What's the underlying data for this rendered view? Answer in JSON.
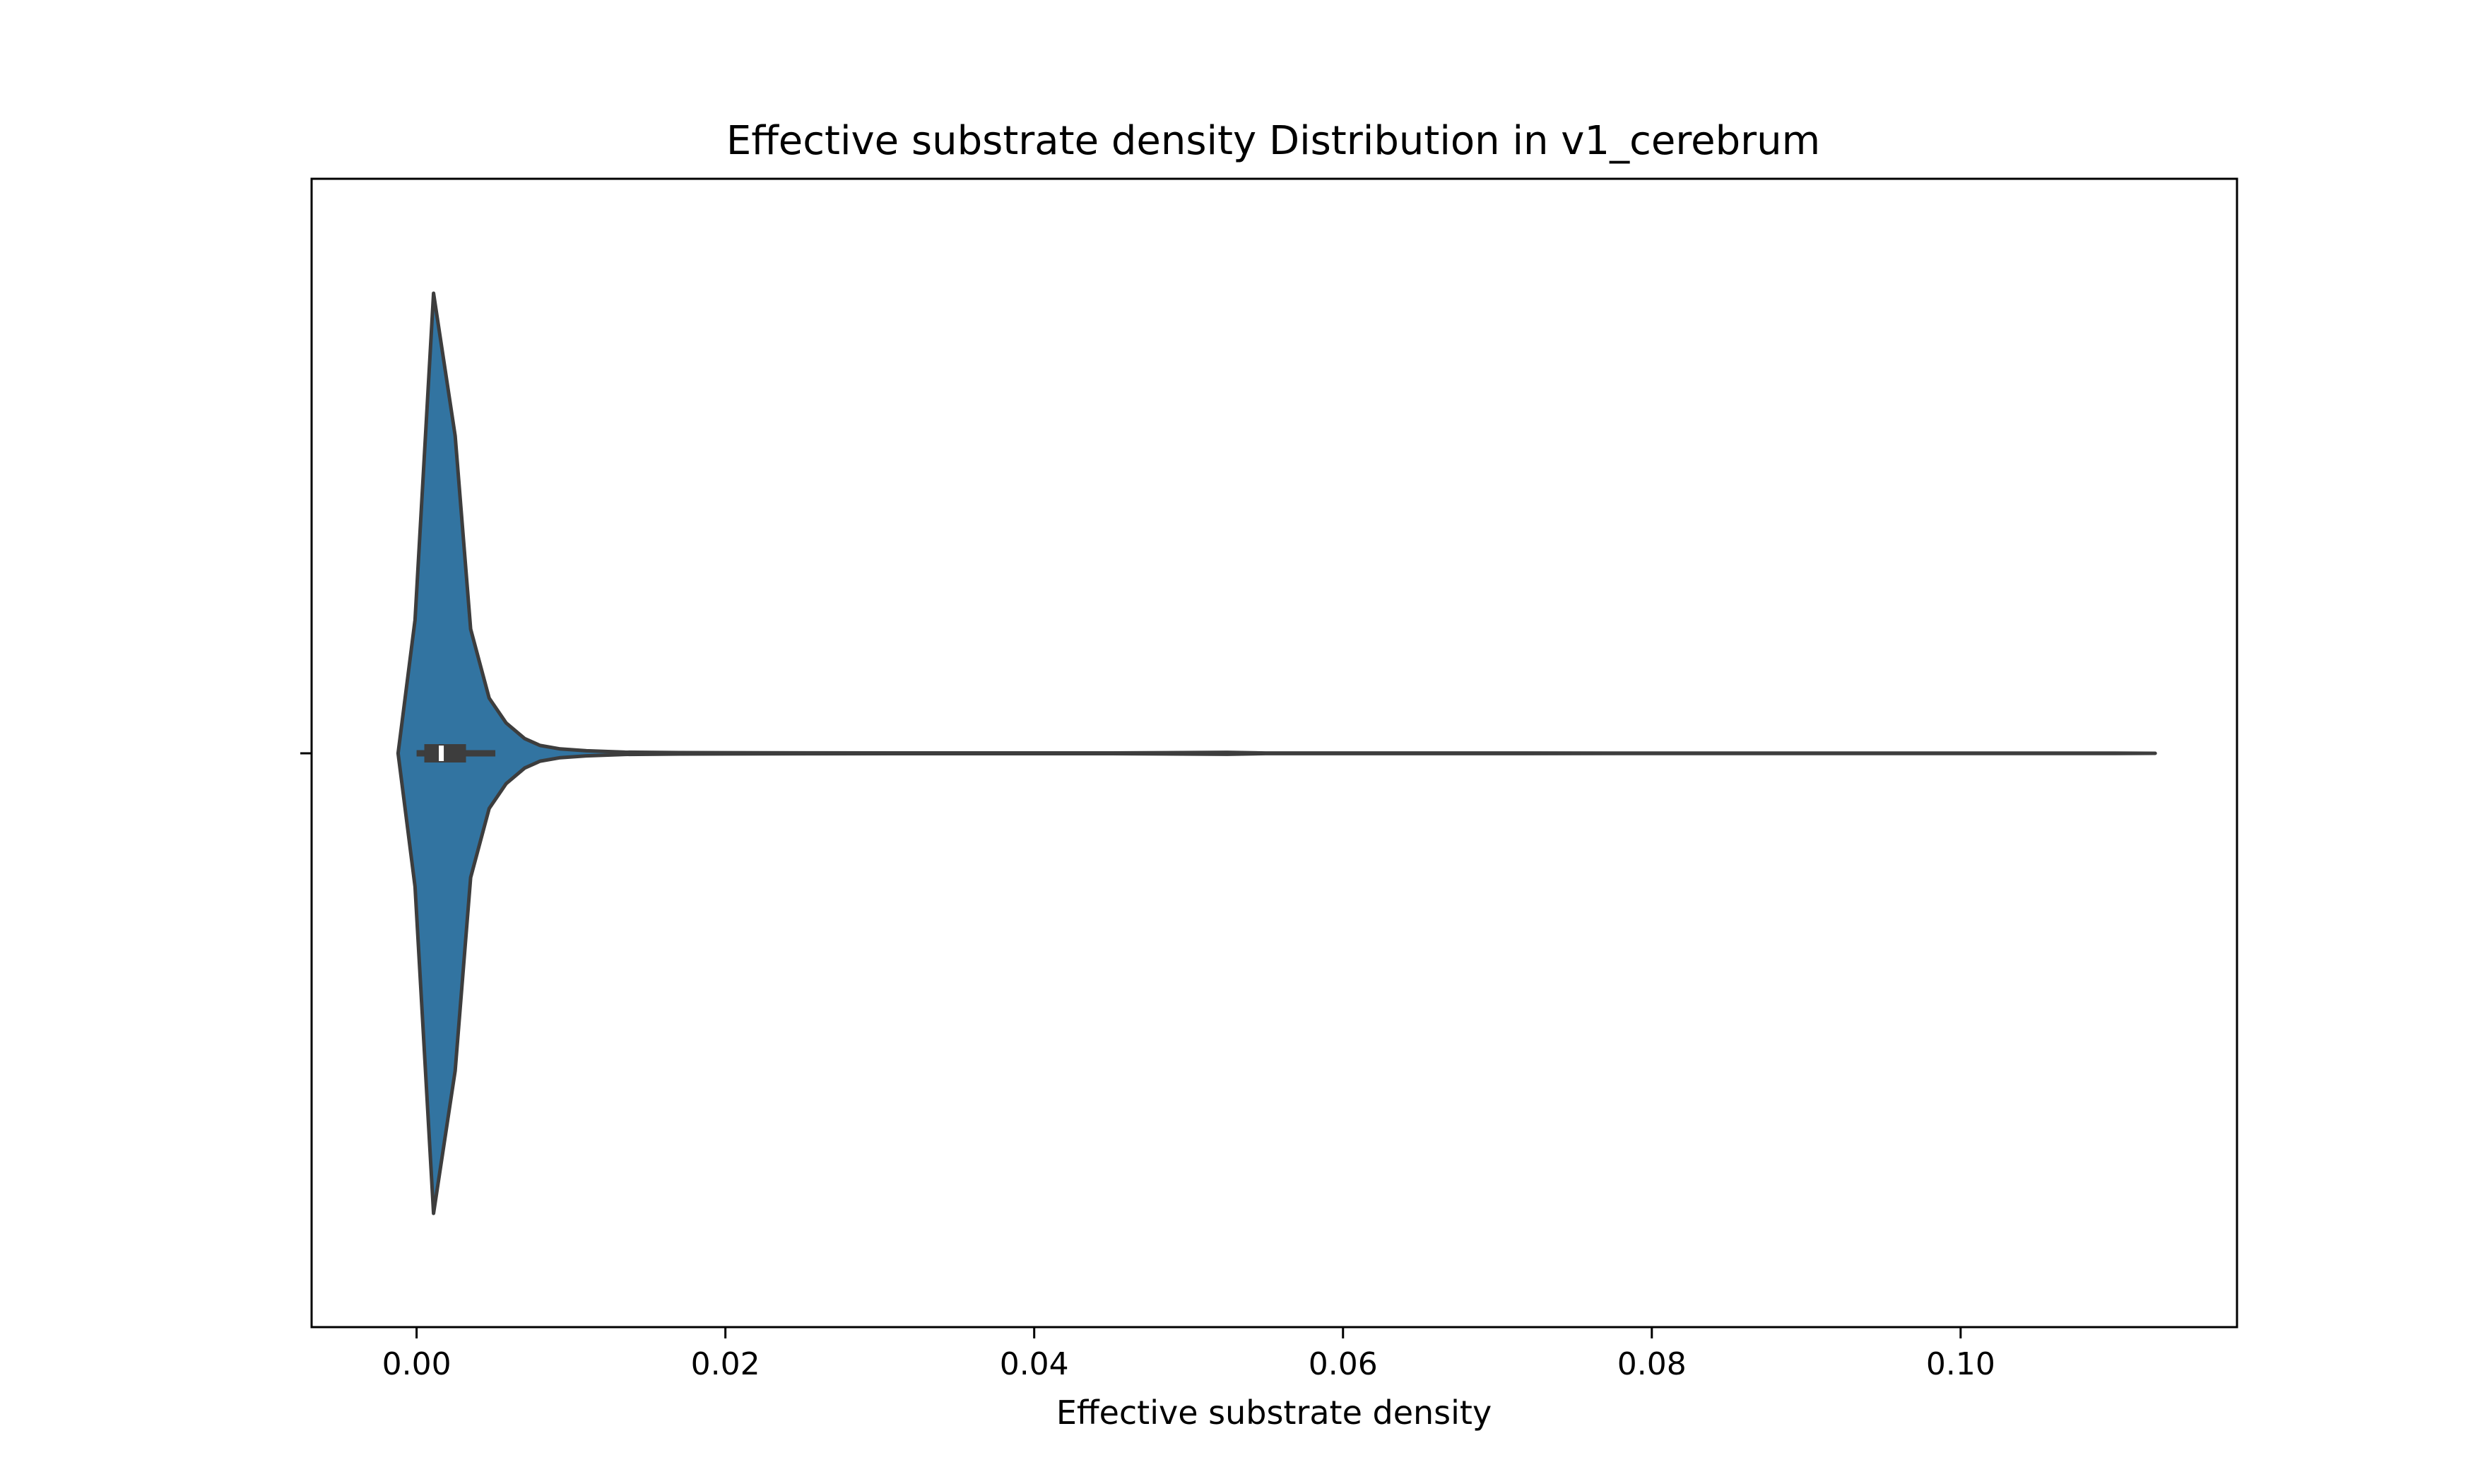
{
  "chart_data": {
    "type": "violin",
    "title": "Effective substrate density Distribution in v1_cerebrum",
    "xlabel": "Effective substrate density",
    "ylabel": "",
    "xlim": [
      -0.0068,
      0.1179
    ],
    "xticks": [
      0.0,
      0.02,
      0.04,
      0.06,
      0.08,
      0.1
    ],
    "xtick_labels": [
      "0.00",
      "0.02",
      "0.04",
      "0.06",
      "0.08",
      "0.10"
    ],
    "grid": false,
    "legend": "none",
    "series": [
      {
        "color": "#3274a1",
        "outline_color": "#3d3d3d",
        "density_profile": [
          {
            "x": -0.0012,
            "density": 0.0
          },
          {
            "x": -0.0001,
            "density": 0.29
          },
          {
            "x": 0.0011,
            "density": 1.0
          },
          {
            "x": 0.0025,
            "density": 0.69
          },
          {
            "x": 0.0035,
            "density": 0.27
          },
          {
            "x": 0.0047,
            "density": 0.12
          },
          {
            "x": 0.0058,
            "density": 0.066
          },
          {
            "x": 0.007,
            "density": 0.032
          },
          {
            "x": 0.008,
            "density": 0.017
          },
          {
            "x": 0.0093,
            "density": 0.0095
          },
          {
            "x": 0.011,
            "density": 0.0055
          },
          {
            "x": 0.0135,
            "density": 0.0025
          },
          {
            "x": 0.017,
            "density": 0.0016
          },
          {
            "x": 0.022,
            "density": 0.0011
          },
          {
            "x": 0.026,
            "density": 0.0009
          },
          {
            "x": 0.034,
            "density": 0.0007
          },
          {
            "x": 0.045,
            "density": 0.0007
          },
          {
            "x": 0.0525,
            "density": 0.0022
          },
          {
            "x": 0.055,
            "density": 0.0006
          },
          {
            "x": 0.08,
            "density": 0.0005
          },
          {
            "x": 0.11,
            "density": 0.0005
          },
          {
            "x": 0.1126,
            "density": 0.0
          }
        ],
        "box": {
          "whisker_low": 0.0,
          "q1": 0.0005,
          "median": 0.0016,
          "q3": 0.0032,
          "whisker_high": 0.0051
        }
      }
    ]
  }
}
